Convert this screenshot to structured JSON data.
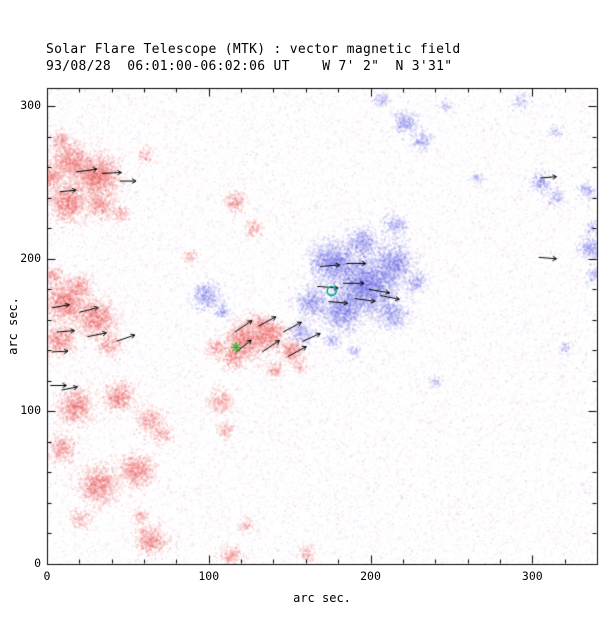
{
  "chart_data": {
    "type": "heatmap",
    "title": "Solar Flare Telescope (MTK) : vector magnetic field",
    "subtitle": "93/08/28  06:01:00-06:02:06 UT    W 7' 2\"  N 3'31\"",
    "xlabel": "arc sec.",
    "ylabel": "arc sec.",
    "xlim": [
      0,
      340
    ],
    "ylim": [
      0,
      312
    ],
    "x_ticks": [
      0,
      100,
      200,
      300
    ],
    "y_ticks": [
      0,
      100,
      200,
      300
    ],
    "minor_tick_step": 20,
    "grid": false,
    "legend": "none",
    "colors": {
      "background": "#ffffff",
      "axis": "#000000",
      "vector": "#000000",
      "negative_polarity": "#e85050",
      "positive_polarity": "#5555dd",
      "marker_circle": "#00a878",
      "marker_asterisk": "#3fae2a"
    },
    "noise": {
      "count": 52000,
      "min_alpha": 0.03,
      "max_alpha": 0.1
    },
    "regions_negative": [
      [
        14,
        265,
        10,
        0.8
      ],
      [
        30,
        255,
        13,
        0.9
      ],
      [
        13,
        238,
        11,
        0.85
      ],
      [
        33,
        236,
        8,
        0.6
      ],
      [
        45,
        230,
        5,
        0.5
      ],
      [
        8,
        278,
        6,
        0.5
      ],
      [
        2,
        255,
        8,
        0.6
      ],
      [
        60,
        268,
        5,
        0.35
      ],
      [
        11,
        172,
        12,
        0.85
      ],
      [
        30,
        162,
        11,
        0.8
      ],
      [
        7,
        147,
        9,
        0.7
      ],
      [
        38,
        144,
        7,
        0.5
      ],
      [
        2,
        190,
        6,
        0.5
      ],
      [
        20,
        183,
        7,
        0.5
      ],
      [
        17,
        104,
        10,
        0.8
      ],
      [
        44,
        110,
        9,
        0.7
      ],
      [
        63,
        95,
        8,
        0.5
      ],
      [
        70,
        85,
        6,
        0.4
      ],
      [
        55,
        62,
        10,
        0.75
      ],
      [
        31,
        52,
        11,
        0.8
      ],
      [
        9,
        76,
        8,
        0.6
      ],
      [
        20,
        30,
        6,
        0.4
      ],
      [
        57,
        32,
        5,
        0.4
      ],
      [
        64,
        16,
        9,
        0.65
      ],
      [
        113,
        6,
        6,
        0.55
      ],
      [
        122,
        26,
        4,
        0.45
      ],
      [
        160,
        8,
        5,
        0.4
      ],
      [
        122,
        147,
        11,
        0.85
      ],
      [
        138,
        150,
        9,
        0.8
      ],
      [
        151,
        140,
        7,
        0.7
      ],
      [
        115,
        136,
        7,
        0.6
      ],
      [
        131,
        158,
        6,
        0.6
      ],
      [
        104,
        142,
        6,
        0.5
      ],
      [
        156,
        130,
        4,
        0.4
      ],
      [
        140,
        128,
        5,
        0.5
      ],
      [
        107,
        107,
        7,
        0.55
      ],
      [
        110,
        88,
        5,
        0.45
      ],
      [
        116,
        238,
        6,
        0.6
      ],
      [
        127,
        220,
        5,
        0.5
      ],
      [
        88,
        202,
        4,
        0.4
      ]
    ],
    "regions_positive": [
      [
        197,
        183,
        17,
        0.95
      ],
      [
        176,
        198,
        13,
        0.8
      ],
      [
        214,
        198,
        11,
        0.7
      ],
      [
        182,
        166,
        11,
        0.75
      ],
      [
        163,
        172,
        9,
        0.6
      ],
      [
        213,
        164,
        9,
        0.5
      ],
      [
        157,
        152,
        7,
        0.5
      ],
      [
        194,
        211,
        9,
        0.6
      ],
      [
        214,
        222,
        7,
        0.45
      ],
      [
        228,
        185,
        7,
        0.4
      ],
      [
        175,
        147,
        5,
        0.4
      ],
      [
        190,
        140,
        4,
        0.35
      ],
      [
        98,
        176,
        8,
        0.6
      ],
      [
        108,
        166,
        5,
        0.4
      ],
      [
        221,
        290,
        7,
        0.55
      ],
      [
        231,
        278,
        6,
        0.45
      ],
      [
        206,
        305,
        5,
        0.35
      ],
      [
        246,
        301,
        4,
        0.3
      ],
      [
        292,
        304,
        5,
        0.3
      ],
      [
        314,
        284,
        4,
        0.3
      ],
      [
        305,
        250,
        6,
        0.5
      ],
      [
        314,
        241,
        5,
        0.4
      ],
      [
        333,
        245,
        5,
        0.45
      ],
      [
        336,
        222,
        4,
        0.35
      ],
      [
        336,
        208,
        7,
        0.6
      ],
      [
        337,
        190,
        5,
        0.4
      ],
      [
        320,
        143,
        4,
        0.3
      ],
      [
        265,
        253,
        4,
        0.3
      ],
      [
        240,
        120,
        4,
        0.3
      ]
    ],
    "vectors": [
      [
        18,
        257,
        8,
        13
      ],
      [
        34,
        256,
        3,
        12
      ],
      [
        45,
        251,
        0,
        10
      ],
      [
        8,
        244,
        6,
        10
      ],
      [
        3,
        168,
        10,
        11
      ],
      [
        20,
        165,
        15,
        12
      ],
      [
        6,
        152,
        5,
        11
      ],
      [
        25,
        149,
        12,
        12
      ],
      [
        43,
        146,
        20,
        12
      ],
      [
        3,
        139,
        3,
        10
      ],
      [
        2,
        117,
        0,
        10
      ],
      [
        9,
        114,
        12,
        10
      ],
      [
        116,
        152,
        35,
        13
      ],
      [
        131,
        156,
        30,
        12
      ],
      [
        146,
        152,
        30,
        13
      ],
      [
        117,
        139,
        40,
        12
      ],
      [
        133,
        139,
        35,
        13
      ],
      [
        149,
        136,
        30,
        13
      ],
      [
        158,
        146,
        25,
        12
      ],
      [
        167,
        182,
        -5,
        13
      ],
      [
        183,
        184,
        0,
        13
      ],
      [
        199,
        180,
        -10,
        13
      ],
      [
        174,
        172,
        -5,
        12
      ],
      [
        190,
        174,
        -8,
        13
      ],
      [
        206,
        176,
        -12,
        12
      ],
      [
        169,
        195,
        5,
        12
      ],
      [
        185,
        197,
        0,
        12
      ],
      [
        304,
        201,
        -5,
        11
      ],
      [
        305,
        253,
        5,
        10
      ]
    ],
    "markers": {
      "circle": {
        "x": 176,
        "y": 179,
        "r": 3
      },
      "asterisk": {
        "x": 117,
        "y": 142,
        "size": 5
      }
    }
  }
}
